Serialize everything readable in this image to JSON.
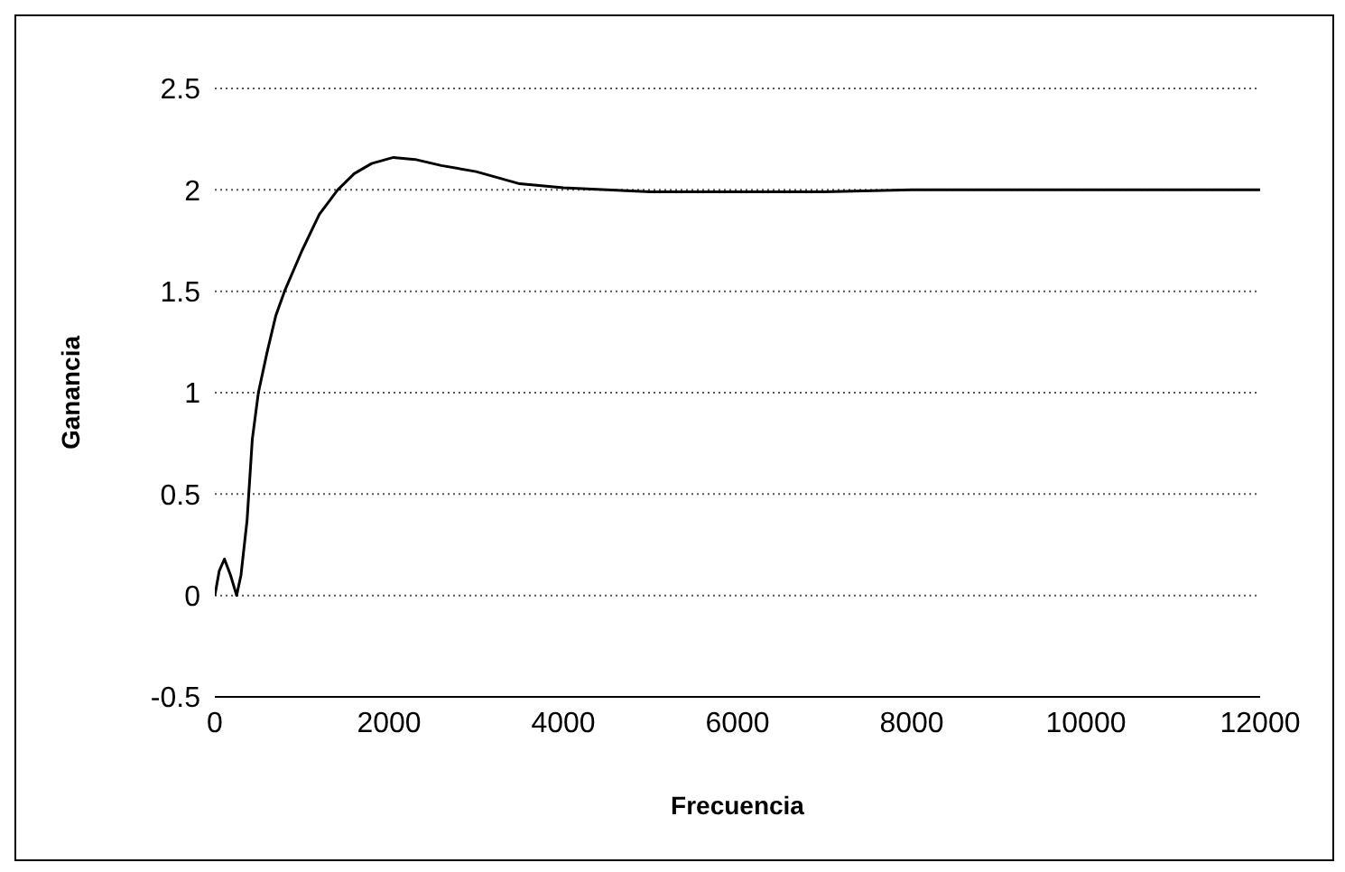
{
  "chart_data": {
    "type": "line",
    "xlabel": "Frecuencia",
    "ylabel": "Ganancia",
    "x": [
      0,
      50,
      110,
      180,
      250,
      300,
      370,
      430,
      500,
      600,
      700,
      800,
      1000,
      1200,
      1410,
      1600,
      1800,
      2050,
      2300,
      2600,
      3000,
      3500,
      4000,
      5000,
      6000,
      7000,
      8000,
      9000,
      10000,
      11000,
      12000
    ],
    "series": [
      {
        "color": "#000000",
        "values": [
          0,
          0.12,
          0.18,
          0.1,
          0,
          0.1,
          0.37,
          0.77,
          1.0,
          1.2,
          1.38,
          1.5,
          1.7,
          1.88,
          2.0,
          2.08,
          2.13,
          2.16,
          2.15,
          2.12,
          2.09,
          2.03,
          2.01,
          1.99,
          1.99,
          1.99,
          2.0,
          2.0,
          2.0,
          2.0,
          2.0
        ]
      }
    ],
    "xlim": [
      0,
      12000
    ],
    "xticks": [
      0,
      2000,
      4000,
      6000,
      8000,
      10000,
      12000
    ],
    "ylim": [
      -0.5,
      2.5
    ],
    "yticks": [
      -0.5,
      0,
      0.5,
      1,
      1.5,
      2,
      2.5
    ],
    "grid": "y",
    "marker": "none",
    "line_style": "solid",
    "legend": false
  }
}
